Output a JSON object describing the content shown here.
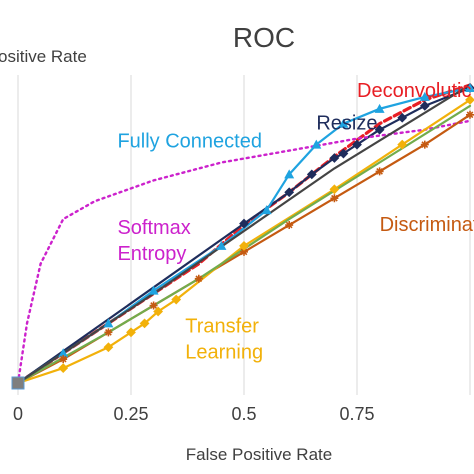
{
  "chart_data": {
    "type": "line",
    "title": "ROC",
    "xlabel": "False Positive Rate",
    "ylabel": "ositive Rate",
    "xlim": [
      0,
      1
    ],
    "ylim": [
      0,
      1
    ],
    "grid": "vertical",
    "x_ticks": [
      {
        "value": 0,
        "label": "0"
      },
      {
        "value": 0.25,
        "label": "0.25"
      },
      {
        "value": 0.5,
        "label": "0.5"
      },
      {
        "value": 0.75,
        "label": "0.75"
      }
    ],
    "series": [
      {
        "name": "Deconvolutic",
        "color": "#e81e24",
        "style": "dashed",
        "marker": "none",
        "label": {
          "lines": [
            "Deconvolutic"
          ],
          "x": 0.75,
          "y": 0.96
        },
        "points": [
          [
            0,
            0
          ],
          [
            0.1,
            0.1
          ],
          [
            0.2,
            0.2
          ],
          [
            0.3,
            0.3
          ],
          [
            0.4,
            0.4
          ],
          [
            0.5,
            0.53
          ],
          [
            0.6,
            0.64
          ],
          [
            0.7,
            0.76
          ],
          [
            0.8,
            0.87
          ],
          [
            0.9,
            0.95
          ],
          [
            1,
            1
          ]
        ]
      },
      {
        "name": "Resize",
        "color": "#1f2d5c",
        "style": "solid",
        "marker": "diamond",
        "label": {
          "lines": [
            "Resize"
          ],
          "x": 0.66,
          "y": 0.85
        },
        "points": [
          [
            0,
            0
          ],
          [
            0.5,
            0.535
          ],
          [
            0.6,
            0.64
          ],
          [
            0.65,
            0.7
          ],
          [
            0.7,
            0.755
          ],
          [
            0.72,
            0.77
          ],
          [
            0.75,
            0.8
          ],
          [
            0.8,
            0.85
          ],
          [
            0.85,
            0.89
          ],
          [
            0.9,
            0.93
          ],
          [
            1,
            0.99
          ]
        ]
      },
      {
        "name": "Fully Connected",
        "color": "#1fa3e0",
        "style": "solid",
        "marker": "triangle",
        "label": {
          "lines": [
            "Fully Connected"
          ],
          "x": 0.22,
          "y": 0.79
        },
        "points": [
          [
            0,
            0
          ],
          [
            0.1,
            0.1
          ],
          [
            0.2,
            0.2
          ],
          [
            0.3,
            0.31
          ],
          [
            0.45,
            0.46
          ],
          [
            0.55,
            0.58
          ],
          [
            0.6,
            0.7
          ],
          [
            0.66,
            0.8
          ],
          [
            0.72,
            0.87
          ],
          [
            0.8,
            0.92
          ],
          [
            0.9,
            0.96
          ],
          [
            1,
            0.99
          ]
        ]
      },
      {
        "name": "Softmax Entropy",
        "color": "#cc22cc",
        "style": "dotted",
        "marker": "none",
        "label": {
          "lines": [
            "Softmax",
            "Entropy"
          ],
          "x": 0.22,
          "y": 0.5
        },
        "points": [
          [
            0,
            0
          ],
          [
            0.02,
            0.2
          ],
          [
            0.05,
            0.4
          ],
          [
            0.1,
            0.55
          ],
          [
            0.17,
            0.61
          ],
          [
            0.3,
            0.68
          ],
          [
            0.45,
            0.74
          ],
          [
            0.6,
            0.78
          ],
          [
            0.75,
            0.82
          ],
          [
            0.9,
            0.85
          ],
          [
            1,
            0.88
          ]
        ]
      },
      {
        "name": "Discriminato",
        "color": "#c55a11",
        "style": "solid",
        "marker": "star",
        "label": {
          "lines": [
            "Discriminato"
          ],
          "x": 0.8,
          "y": 0.51
        },
        "points": [
          [
            0,
            0
          ],
          [
            0.1,
            0.08
          ],
          [
            0.2,
            0.17
          ],
          [
            0.3,
            0.26
          ],
          [
            0.4,
            0.35
          ],
          [
            0.5,
            0.44
          ],
          [
            0.6,
            0.53
          ],
          [
            0.7,
            0.62
          ],
          [
            0.8,
            0.71
          ],
          [
            0.9,
            0.8
          ],
          [
            1,
            0.9
          ]
        ]
      },
      {
        "name": "Transfer Learning",
        "color": "#f2b10a",
        "style": "solid",
        "marker": "diamond",
        "label": {
          "lines": [
            "Transfer",
            "Learning"
          ],
          "x": 0.37,
          "y": 0.17
        },
        "points": [
          [
            0,
            0
          ],
          [
            0.1,
            0.05
          ],
          [
            0.2,
            0.12
          ],
          [
            0.25,
            0.17
          ],
          [
            0.28,
            0.2
          ],
          [
            0.31,
            0.24
          ],
          [
            0.35,
            0.28
          ],
          [
            0.5,
            0.46
          ],
          [
            0.7,
            0.65
          ],
          [
            0.85,
            0.8
          ],
          [
            1,
            0.95
          ]
        ]
      },
      {
        "name": "",
        "color": "#72ac4d",
        "style": "solid",
        "marker": "none",
        "points": [
          [
            0,
            0
          ],
          [
            0.2,
            0.17
          ],
          [
            0.4,
            0.35
          ],
          [
            0.6,
            0.55
          ],
          [
            0.8,
            0.74
          ],
          [
            1,
            0.93
          ]
        ]
      },
      {
        "name": "",
        "color": "#444444",
        "style": "solid",
        "marker": "none",
        "points": [
          [
            0,
            0
          ],
          [
            0.3,
            0.3
          ],
          [
            0.5,
            0.51
          ],
          [
            0.7,
            0.72
          ],
          [
            1,
            1
          ]
        ]
      }
    ]
  }
}
